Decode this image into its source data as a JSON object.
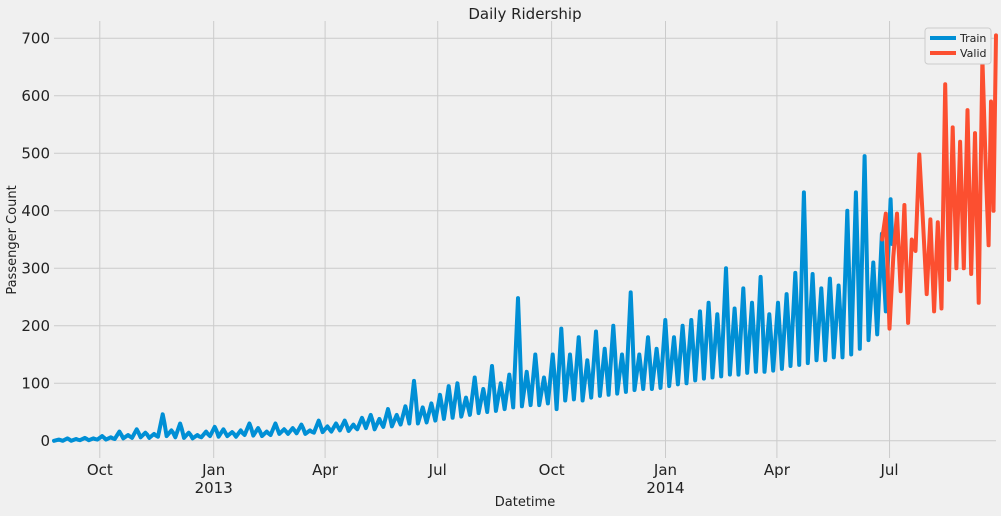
{
  "chart_data": {
    "type": "line",
    "title": "Daily Ridership",
    "xlabel": "Datetime",
    "ylabel": "Passenger Count",
    "xlim": [
      "2012-08-25",
      "2014-09-25"
    ],
    "ylim": [
      -30,
      730
    ],
    "y_ticks": [
      0,
      100,
      200,
      300,
      400,
      500,
      600,
      700
    ],
    "x_ticks": [
      {
        "date": "2012-10-01",
        "label": "Oct",
        "sublabel": ""
      },
      {
        "date": "2013-01-01",
        "label": "Jan",
        "sublabel": "2013"
      },
      {
        "date": "2013-04-01",
        "label": "Apr",
        "sublabel": ""
      },
      {
        "date": "2013-07-01",
        "label": "Jul",
        "sublabel": ""
      },
      {
        "date": "2013-10-01",
        "label": "Oct",
        "sublabel": ""
      },
      {
        "date": "2014-01-01",
        "label": "Jan",
        "sublabel": "2014"
      },
      {
        "date": "2014-04-01",
        "label": "Apr",
        "sublabel": ""
      },
      {
        "date": "2014-07-01",
        "label": "Jul",
        "sublabel": ""
      }
    ],
    "grid": true,
    "legend_position": "top-right",
    "series": [
      {
        "name": "Train",
        "color": "#008fd5",
        "points": [
          [
            "2012-08-25",
            2
          ],
          [
            "2012-09-01",
            4
          ],
          [
            "2012-09-08",
            3
          ],
          [
            "2012-09-15",
            5
          ],
          [
            "2012-09-22",
            4
          ],
          [
            "2012-09-29",
            8
          ],
          [
            "2012-10-06",
            6
          ],
          [
            "2012-10-13",
            16
          ],
          [
            "2012-10-20",
            10
          ],
          [
            "2012-10-27",
            20
          ],
          [
            "2012-11-03",
            14
          ],
          [
            "2012-11-10",
            12
          ],
          [
            "2012-11-17",
            46
          ],
          [
            "2012-11-24",
            18
          ],
          [
            "2012-12-01",
            30
          ],
          [
            "2012-12-08",
            14
          ],
          [
            "2012-12-15",
            10
          ],
          [
            "2012-12-22",
            16
          ],
          [
            "2012-12-29",
            24
          ],
          [
            "2013-01-05",
            20
          ],
          [
            "2013-01-12",
            15
          ],
          [
            "2013-01-19",
            18
          ],
          [
            "2013-01-26",
            30
          ],
          [
            "2013-02-02",
            22
          ],
          [
            "2013-02-09",
            16
          ],
          [
            "2013-02-16",
            30
          ],
          [
            "2013-02-23",
            20
          ],
          [
            "2013-03-02",
            22
          ],
          [
            "2013-03-09",
            28
          ],
          [
            "2013-03-16",
            18
          ],
          [
            "2013-03-23",
            35
          ],
          [
            "2013-03-30",
            25
          ],
          [
            "2013-04-06",
            30
          ],
          [
            "2013-04-13",
            35
          ],
          [
            "2013-04-20",
            28
          ],
          [
            "2013-04-27",
            40
          ],
          [
            "2013-05-04",
            45
          ],
          [
            "2013-05-11",
            38
          ],
          [
            "2013-05-18",
            55
          ],
          [
            "2013-05-25",
            45
          ],
          [
            "2013-06-01",
            60
          ],
          [
            "2013-06-08",
            104
          ],
          [
            "2013-06-15",
            58
          ],
          [
            "2013-06-22",
            65
          ],
          [
            "2013-06-29",
            80
          ],
          [
            "2013-07-06",
            95
          ],
          [
            "2013-07-13",
            100
          ],
          [
            "2013-07-20",
            75
          ],
          [
            "2013-07-27",
            110
          ],
          [
            "2013-08-03",
            90
          ],
          [
            "2013-08-10",
            130
          ],
          [
            "2013-08-17",
            100
          ],
          [
            "2013-08-24",
            115
          ],
          [
            "2013-08-31",
            248
          ],
          [
            "2013-09-07",
            120
          ],
          [
            "2013-09-14",
            150
          ],
          [
            "2013-09-21",
            110
          ],
          [
            "2013-09-28",
            150
          ],
          [
            "2013-10-05",
            195
          ],
          [
            "2013-10-12",
            150
          ],
          [
            "2013-10-19",
            180
          ],
          [
            "2013-10-26",
            140
          ],
          [
            "2013-11-02",
            190
          ],
          [
            "2013-11-09",
            160
          ],
          [
            "2013-11-16",
            200
          ],
          [
            "2013-11-23",
            150
          ],
          [
            "2013-11-30",
            258
          ],
          [
            "2013-12-07",
            150
          ],
          [
            "2013-12-14",
            180
          ],
          [
            "2013-12-21",
            160
          ],
          [
            "2013-12-28",
            210
          ],
          [
            "2014-01-04",
            180
          ],
          [
            "2014-01-11",
            200
          ],
          [
            "2014-01-18",
            210
          ],
          [
            "2014-01-25",
            225
          ],
          [
            "2014-02-01",
            240
          ],
          [
            "2014-02-08",
            220
          ],
          [
            "2014-02-15",
            300
          ],
          [
            "2014-02-22",
            230
          ],
          [
            "2014-03-01",
            265
          ],
          [
            "2014-03-08",
            240
          ],
          [
            "2014-03-15",
            285
          ],
          [
            "2014-03-22",
            220
          ],
          [
            "2014-03-29",
            240
          ],
          [
            "2014-04-05",
            255
          ],
          [
            "2014-04-12",
            292
          ],
          [
            "2014-04-19",
            432
          ],
          [
            "2014-04-26",
            290
          ],
          [
            "2014-05-03",
            265
          ],
          [
            "2014-05-10",
            282
          ],
          [
            "2014-05-17",
            270
          ],
          [
            "2014-05-24",
            400
          ],
          [
            "2014-05-31",
            432
          ],
          [
            "2014-06-07",
            495
          ],
          [
            "2014-06-14",
            310
          ],
          [
            "2014-06-21",
            360
          ],
          [
            "2014-06-28",
            420
          ]
        ],
        "lows": [
          [
            "2012-08-25",
            0
          ],
          [
            "2012-09-01",
            0
          ],
          [
            "2012-09-08",
            0
          ],
          [
            "2012-09-15",
            1
          ],
          [
            "2012-09-22",
            1
          ],
          [
            "2012-09-29",
            2
          ],
          [
            "2012-10-06",
            2
          ],
          [
            "2012-10-13",
            3
          ],
          [
            "2012-10-20",
            4
          ],
          [
            "2012-10-27",
            5
          ],
          [
            "2012-11-03",
            6
          ],
          [
            "2012-11-10",
            5
          ],
          [
            "2012-11-17",
            7
          ],
          [
            "2012-11-24",
            8
          ],
          [
            "2012-12-01",
            6
          ],
          [
            "2012-12-08",
            5
          ],
          [
            "2012-12-15",
            4
          ],
          [
            "2012-12-22",
            6
          ],
          [
            "2012-12-29",
            8
          ],
          [
            "2013-01-05",
            7
          ],
          [
            "2013-01-12",
            8
          ],
          [
            "2013-01-19",
            7
          ],
          [
            "2013-01-26",
            10
          ],
          [
            "2013-02-02",
            9
          ],
          [
            "2013-02-09",
            8
          ],
          [
            "2013-02-16",
            10
          ],
          [
            "2013-02-23",
            12
          ],
          [
            "2013-03-02",
            12
          ],
          [
            "2013-03-09",
            13
          ],
          [
            "2013-03-16",
            12
          ],
          [
            "2013-03-23",
            14
          ],
          [
            "2013-03-30",
            15
          ],
          [
            "2013-04-06",
            16
          ],
          [
            "2013-04-13",
            18
          ],
          [
            "2013-04-20",
            17
          ],
          [
            "2013-04-27",
            20
          ],
          [
            "2013-05-04",
            22
          ],
          [
            "2013-05-11",
            20
          ],
          [
            "2013-05-18",
            24
          ],
          [
            "2013-05-25",
            25
          ],
          [
            "2013-06-01",
            28
          ],
          [
            "2013-06-08",
            30
          ],
          [
            "2013-06-15",
            30
          ],
          [
            "2013-06-22",
            32
          ],
          [
            "2013-06-29",
            35
          ],
          [
            "2013-07-06",
            38
          ],
          [
            "2013-07-13",
            40
          ],
          [
            "2013-07-20",
            42
          ],
          [
            "2013-07-27",
            45
          ],
          [
            "2013-08-03",
            48
          ],
          [
            "2013-08-10",
            50
          ],
          [
            "2013-08-17",
            52
          ],
          [
            "2013-08-24",
            55
          ],
          [
            "2013-08-31",
            58
          ],
          [
            "2013-09-07",
            60
          ],
          [
            "2013-09-14",
            62
          ],
          [
            "2013-09-21",
            62
          ],
          [
            "2013-09-28",
            65
          ],
          [
            "2013-10-05",
            55
          ],
          [
            "2013-10-12",
            70
          ],
          [
            "2013-10-19",
            72
          ],
          [
            "2013-10-26",
            70
          ],
          [
            "2013-11-02",
            75
          ],
          [
            "2013-11-09",
            78
          ],
          [
            "2013-11-16",
            80
          ],
          [
            "2013-11-23",
            82
          ],
          [
            "2013-11-30",
            85
          ],
          [
            "2013-12-07",
            88
          ],
          [
            "2013-12-14",
            90
          ],
          [
            "2013-12-21",
            90
          ],
          [
            "2013-12-28",
            92
          ],
          [
            "2014-01-04",
            95
          ],
          [
            "2014-01-11",
            98
          ],
          [
            "2014-01-18",
            100
          ],
          [
            "2014-01-25",
            105
          ],
          [
            "2014-02-01",
            108
          ],
          [
            "2014-02-08",
            110
          ],
          [
            "2014-02-15",
            112
          ],
          [
            "2014-02-22",
            115
          ],
          [
            "2014-03-01",
            115
          ],
          [
            "2014-03-08",
            118
          ],
          [
            "2014-03-15",
            120
          ],
          [
            "2014-03-22",
            120
          ],
          [
            "2014-03-29",
            122
          ],
          [
            "2014-04-05",
            125
          ],
          [
            "2014-04-12",
            130
          ],
          [
            "2014-04-19",
            132
          ],
          [
            "2014-04-26",
            135
          ],
          [
            "2014-05-03",
            140
          ],
          [
            "2014-05-10",
            140
          ],
          [
            "2014-05-17",
            145
          ],
          [
            "2014-05-24",
            145
          ],
          [
            "2014-05-31",
            150
          ],
          [
            "2014-06-07",
            160
          ],
          [
            "2014-06-14",
            175
          ],
          [
            "2014-06-21",
            185
          ],
          [
            "2014-06-28",
            225
          ]
        ]
      },
      {
        "name": "Valid",
        "color": "#fc4f30",
        "points": [
          [
            "2014-06-25",
            350
          ],
          [
            "2014-06-28",
            395
          ],
          [
            "2014-07-01",
            195
          ],
          [
            "2014-07-04",
            320
          ],
          [
            "2014-07-07",
            395
          ],
          [
            "2014-07-10",
            260
          ],
          [
            "2014-07-13",
            410
          ],
          [
            "2014-07-16",
            205
          ],
          [
            "2014-07-19",
            350
          ],
          [
            "2014-07-22",
            330
          ],
          [
            "2014-07-25",
            498
          ],
          [
            "2014-07-28",
            380
          ],
          [
            "2014-07-31",
            255
          ],
          [
            "2014-08-03",
            385
          ],
          [
            "2014-08-06",
            225
          ],
          [
            "2014-08-09",
            380
          ],
          [
            "2014-08-12",
            230
          ],
          [
            "2014-08-15",
            620
          ],
          [
            "2014-08-18",
            280
          ],
          [
            "2014-08-21",
            545
          ],
          [
            "2014-08-24",
            300
          ],
          [
            "2014-08-27",
            520
          ],
          [
            "2014-08-30",
            300
          ],
          [
            "2014-09-02",
            575
          ],
          [
            "2014-09-05",
            290
          ],
          [
            "2014-09-08",
            535
          ],
          [
            "2014-09-11",
            240
          ],
          [
            "2014-09-14",
            665
          ],
          [
            "2014-09-17",
            455
          ],
          [
            "2014-09-19",
            340
          ],
          [
            "2014-09-21",
            590
          ],
          [
            "2014-09-23",
            400
          ],
          [
            "2014-09-25",
            705
          ]
        ]
      }
    ]
  }
}
